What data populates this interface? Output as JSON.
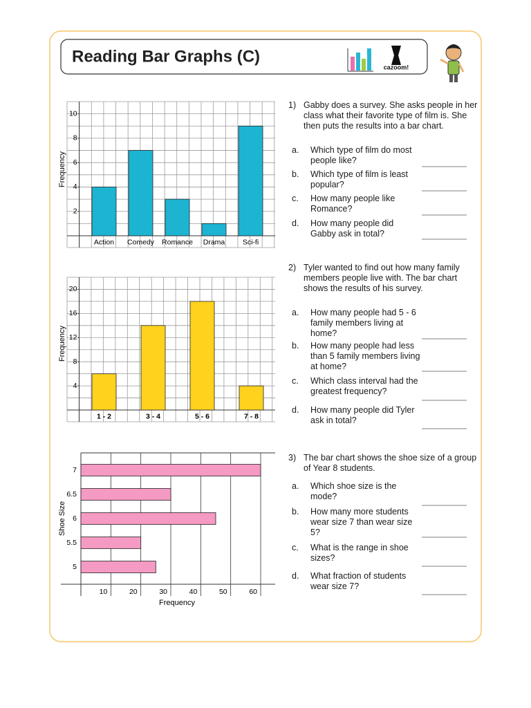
{
  "header": {
    "title": "Reading Bar Graphs (C)",
    "logo": "cazoom!"
  },
  "chart_data": [
    {
      "type": "bar",
      "categories": [
        "Action",
        "Comedy",
        "Romance",
        "Drama",
        "Sci-fi"
      ],
      "values": [
        4,
        7,
        3,
        1,
        9
      ],
      "color": "#1db4d2",
      "y_label": "Frequency",
      "ylim": [
        0,
        11
      ],
      "yticks": [
        2,
        4,
        6,
        8,
        10
      ],
      "ygrid": [
        0,
        1,
        2,
        3,
        4,
        5,
        6,
        7,
        8,
        9,
        10,
        11
      ],
      "grid": true
    },
    {
      "type": "bar",
      "categories": [
        "1 - 2",
        "3 - 4",
        "5 - 6",
        "7 - 8"
      ],
      "values": [
        6,
        14,
        18,
        4
      ],
      "color": "#ffd21e",
      "y_label": "Frequency",
      "ylim": [
        0,
        22
      ],
      "yticks": [
        4,
        8,
        12,
        16,
        20
      ],
      "ygrid": [
        0,
        2,
        4,
        6,
        8,
        10,
        12,
        14,
        16,
        18,
        20,
        22
      ],
      "grid": true
    },
    {
      "type": "hbar",
      "categories": [
        "5",
        "5.5",
        "6",
        "6.5",
        "7"
      ],
      "values": [
        25,
        20,
        45,
        30,
        60
      ],
      "color": "#f59ac3",
      "x_label": "Frequency",
      "y_label": "Shoe Size",
      "xlim": [
        0,
        60
      ],
      "xticks": [
        10,
        20,
        30,
        40,
        50,
        60
      ],
      "grid": true
    }
  ],
  "questions": [
    {
      "number": "1)",
      "text": "Gabby does a survey. She asks people in her class what their favorite type of film is. She then puts the results into a bar chart.",
      "parts": [
        {
          "letter": "a.",
          "text": "Which type of film do most people like?"
        },
        {
          "letter": "b.",
          "text": "Which type of film is least popular?"
        },
        {
          "letter": "c.",
          "text": "How many people like Romance?"
        },
        {
          "letter": "d.",
          "text": "How many people did Gabby ask in total?"
        }
      ]
    },
    {
      "number": "2)",
      "text": "Tyler wanted to find out how many family members people live with. The bar chart shows the results of his survey.",
      "parts": [
        {
          "letter": "a.",
          "text": "How many people had 5 - 6 family members living at home?"
        },
        {
          "letter": "b.",
          "text": "How many people had less than 5 family members living at home?"
        },
        {
          "letter": "c.",
          "text": "Which class interval had the greatest frequency?"
        },
        {
          "letter": "d.",
          "text": "How many people did Tyler ask in total?"
        }
      ]
    },
    {
      "number": "3)",
      "text": "The bar chart shows the shoe size of a group of Year 8 students.",
      "parts": [
        {
          "letter": "a.",
          "text": "Which shoe size is the mode?"
        },
        {
          "letter": "b.",
          "text": "How many more students wear size 7 than wear size 5?"
        },
        {
          "letter": "c.",
          "text": "What is the range in shoe sizes?"
        },
        {
          "letter": "d.",
          "text": "What fraction of students wear size 7?"
        }
      ]
    }
  ]
}
